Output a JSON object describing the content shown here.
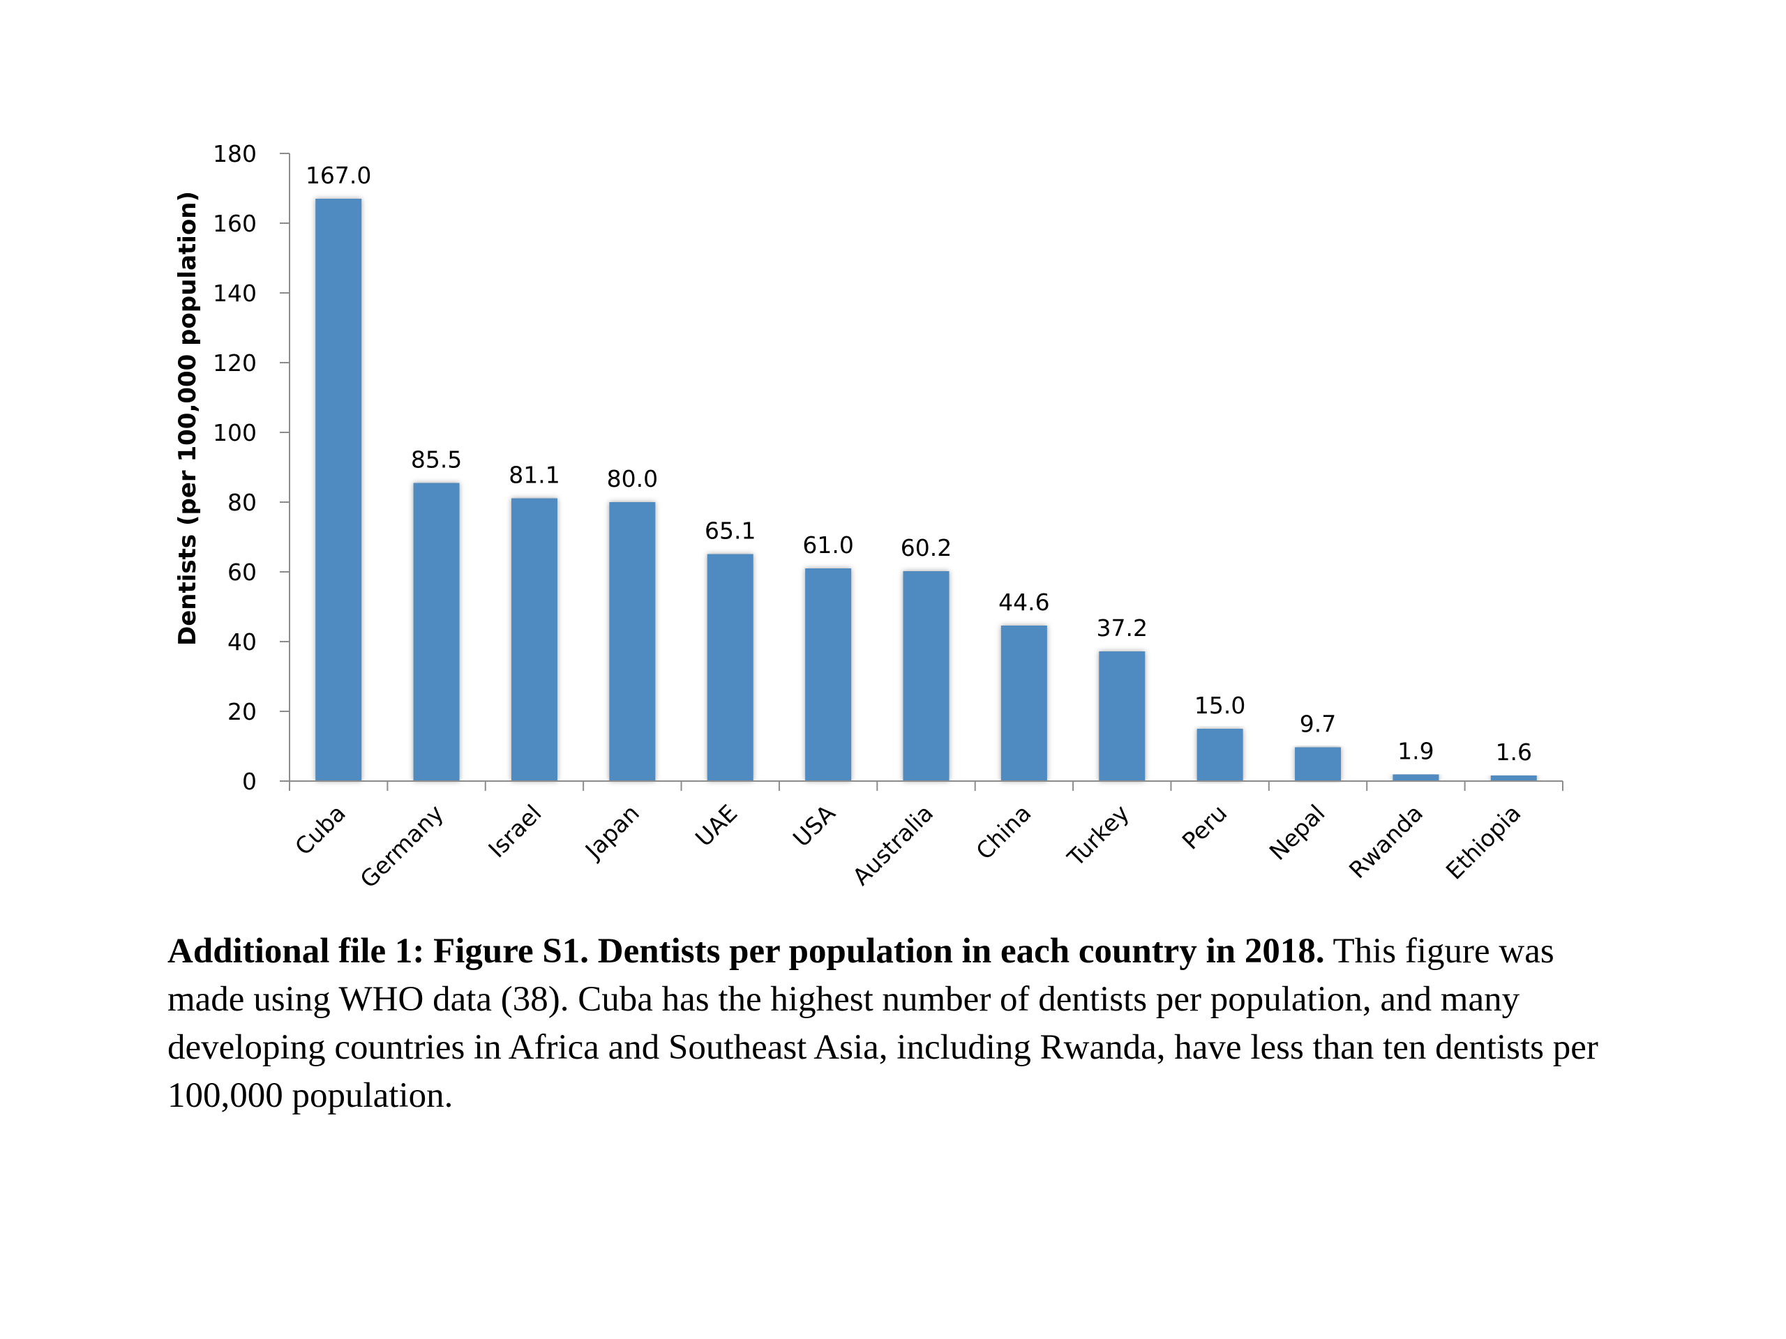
{
  "chart_data": {
    "type": "bar",
    "categories": [
      "Cuba",
      "Germany",
      "Israel",
      "Japan",
      "UAE",
      "USA",
      "Australia",
      "China",
      "Turkey",
      "Peru",
      "Nepal",
      "Rwanda",
      "Ethiopia"
    ],
    "values": [
      167.0,
      85.5,
      81.1,
      80.0,
      65.1,
      61.0,
      60.2,
      44.6,
      37.2,
      15.0,
      9.7,
      1.9,
      1.6
    ],
    "data_labels": [
      "167.0",
      "85.5",
      "81.1",
      "80.0",
      "65.1",
      "61.0",
      "60.2",
      "44.6",
      "37.2",
      "15.0",
      "9.7",
      "1.9",
      "1.6"
    ],
    "ylabel": "Dentists (per 100,000 population)",
    "ylim": [
      0,
      180
    ],
    "yticks": [
      0,
      20,
      40,
      60,
      80,
      100,
      120,
      140,
      160,
      180
    ],
    "bar_color": "#4f8bc0",
    "grid": false,
    "legend": "none"
  },
  "caption": {
    "bold": "Additional file 1: Figure S1. Dentists per population in each country in 2018.",
    "text": " This figure was made using WHO data (38). Cuba has the highest number of dentists per population, and many developing countries in Africa and Southeast Asia, including Rwanda, have less than ten dentists per 100,000 population."
  }
}
